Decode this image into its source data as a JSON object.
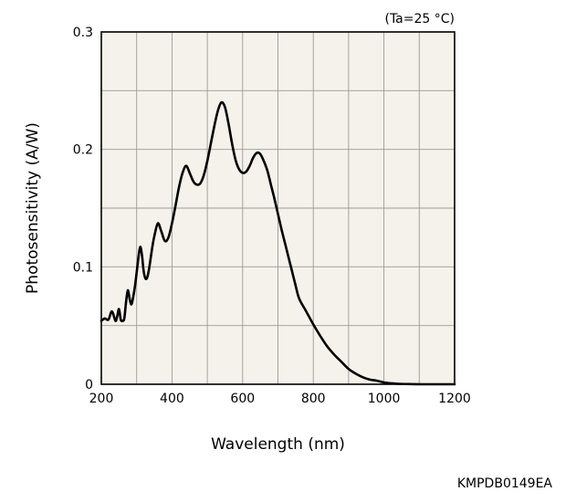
{
  "chart_data": {
    "type": "line",
    "xlabel": "Wavelength (nm)",
    "ylabel": "Photosensitivity (A/W)",
    "condition": "(Ta=25 °C)",
    "code": "KMPDB0149EA",
    "xlim": [
      200,
      1200
    ],
    "ylim": [
      0,
      0.3
    ],
    "x_ticks": [
      200,
      400,
      600,
      800,
      1000,
      1200
    ],
    "y_ticks": [
      "0",
      "0.1",
      "0.2",
      "0.3"
    ],
    "grid": true,
    "colors": {
      "line": "#000000",
      "plot_bg": "#f4f2ea",
      "grid": "#9a9a9a"
    },
    "series": [
      {
        "x": [
          200,
          210,
          220,
          230,
          240,
          245,
          250,
          255,
          260,
          265,
          270,
          275,
          280,
          285,
          290,
          295,
          300,
          305,
          310,
          315,
          320,
          325,
          330,
          335,
          340,
          345,
          350,
          360,
          370,
          380,
          390,
          400,
          410,
          420,
          430,
          440,
          450,
          460,
          470,
          480,
          490,
          500,
          510,
          520,
          530,
          540,
          550,
          560,
          570,
          580,
          590,
          600,
          610,
          620,
          630,
          640,
          650,
          660,
          670,
          680,
          690,
          700,
          710,
          720,
          730,
          740,
          750,
          760,
          780,
          800,
          820,
          840,
          860,
          880,
          900,
          920,
          940,
          960,
          980,
          1000,
          1020,
          1040,
          1060,
          1080,
          1100,
          1120,
          1140,
          1160,
          1180,
          1200
        ],
        "y": [
          0.054,
          0.056,
          0.055,
          0.062,
          0.054,
          0.058,
          0.064,
          0.055,
          0.054,
          0.056,
          0.07,
          0.08,
          0.073,
          0.068,
          0.074,
          0.083,
          0.095,
          0.108,
          0.117,
          0.11,
          0.096,
          0.09,
          0.091,
          0.098,
          0.108,
          0.118,
          0.126,
          0.137,
          0.13,
          0.122,
          0.125,
          0.137,
          0.152,
          0.168,
          0.18,
          0.186,
          0.18,
          0.173,
          0.17,
          0.171,
          0.178,
          0.19,
          0.205,
          0.22,
          0.233,
          0.24,
          0.236,
          0.222,
          0.205,
          0.191,
          0.183,
          0.18,
          0.181,
          0.186,
          0.193,
          0.197,
          0.196,
          0.19,
          0.182,
          0.17,
          0.158,
          0.145,
          0.132,
          0.12,
          0.108,
          0.096,
          0.084,
          0.073,
          0.062,
          0.051,
          0.041,
          0.032,
          0.025,
          0.019,
          0.013,
          0.009,
          0.006,
          0.004,
          0.003,
          0.0015,
          0.0008,
          0.0004,
          0.0002,
          0.0001,
          0.0,
          0.0,
          0.0,
          0.0,
          0.0,
          0.0
        ]
      }
    ]
  }
}
